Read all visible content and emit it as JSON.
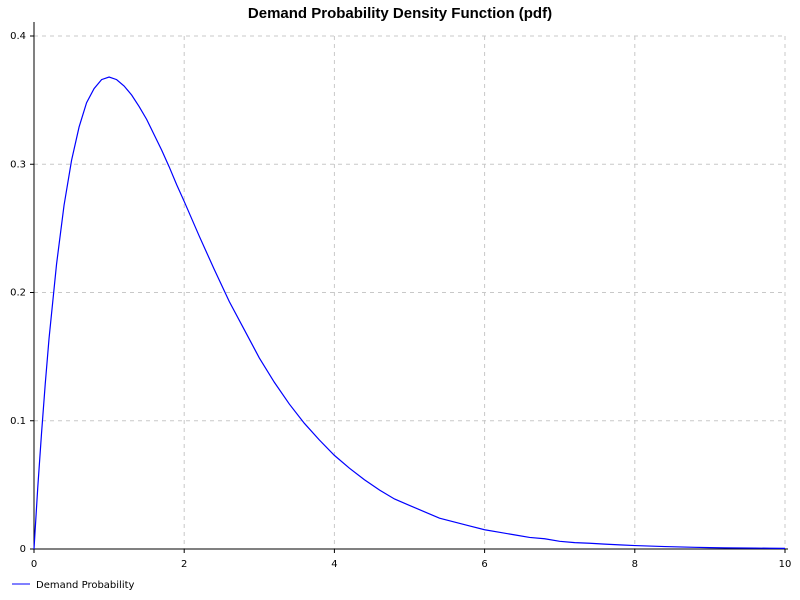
{
  "colors": {
    "series": "#0000ff",
    "grid": "#c8c8c8",
    "axis": "#000000",
    "background": "#ffffff"
  },
  "chart_data": {
    "type": "line",
    "title": "Demand Probability Density Function (pdf)",
    "xlabel": "",
    "ylabel": "",
    "xlim": [
      0,
      10
    ],
    "ylim": [
      0,
      0.4
    ],
    "x_ticks": [
      0,
      2,
      4,
      6,
      8,
      10
    ],
    "y_ticks": [
      0,
      0.1,
      0.2,
      0.3,
      0.4
    ],
    "x_tick_labels": [
      "0",
      "2",
      "4",
      "6",
      "8",
      "10"
    ],
    "y_tick_labels": [
      "0",
      "0.1",
      "0.2",
      "0.3",
      "0.4"
    ],
    "grid": true,
    "legend_placement": "bottom-left",
    "series": [
      {
        "name": "Demand Probability",
        "color": "#0000ff",
        "x": [
          0,
          0.05,
          0.1,
          0.15,
          0.2,
          0.3,
          0.4,
          0.5,
          0.6,
          0.7,
          0.8,
          0.9,
          1.0,
          1.1,
          1.2,
          1.3,
          1.4,
          1.5,
          1.6,
          1.7,
          1.8,
          1.9,
          2.0,
          2.2,
          2.4,
          2.6,
          2.8,
          3.0,
          3.2,
          3.4,
          3.6,
          3.8,
          4.0,
          4.2,
          4.4,
          4.6,
          4.8,
          5.0,
          5.2,
          5.4,
          5.6,
          5.8,
          6.0,
          6.2,
          6.4,
          6.6,
          6.8,
          7.0,
          7.2,
          7.4,
          7.6,
          7.8,
          8.0,
          8.2,
          8.4,
          8.6,
          8.8,
          9.0,
          9.2,
          9.4,
          9.6,
          9.8,
          10.0
        ],
        "y": [
          0,
          0.048,
          0.09,
          0.129,
          0.164,
          0.222,
          0.268,
          0.303,
          0.329,
          0.348,
          0.359,
          0.366,
          0.368,
          0.366,
          0.361,
          0.354,
          0.345,
          0.335,
          0.323,
          0.311,
          0.298,
          0.284,
          0.271,
          0.244,
          0.218,
          0.193,
          0.171,
          0.149,
          0.13,
          0.113,
          0.098,
          0.085,
          0.073,
          0.063,
          0.054,
          0.046,
          0.039,
          0.034,
          0.029,
          0.024,
          0.021,
          0.018,
          0.015,
          0.013,
          0.011,
          0.009,
          0.008,
          0.006,
          0.005,
          0.0045,
          0.0038,
          0.0032,
          0.0027,
          0.0023,
          0.0019,
          0.0016,
          0.0013,
          0.0011,
          0.0009,
          0.0008,
          0.0007,
          0.0006,
          0.0005
        ]
      }
    ]
  }
}
